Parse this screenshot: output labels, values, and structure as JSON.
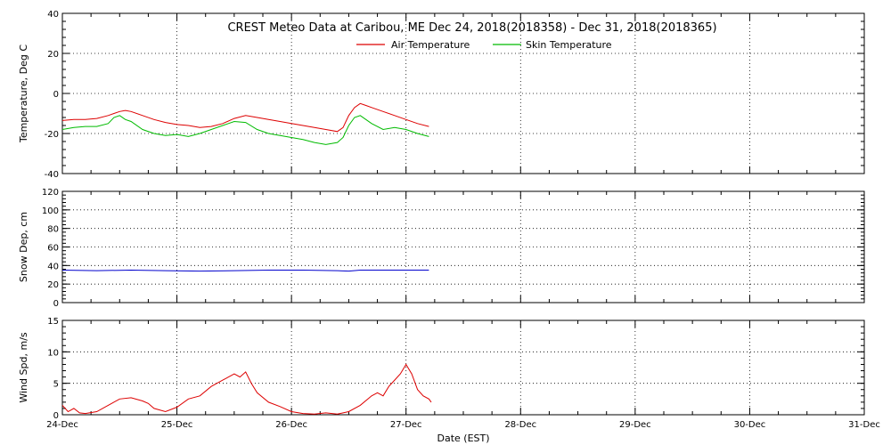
{
  "chart_data": [
    {
      "type": "line",
      "title": "CREST Meteo Data at Caribou, ME   Dec 24, 2018(2018358) - Dec 31, 2018(2018365)",
      "ylabel": "Temperature, Deg C",
      "ylim": [
        -40,
        40
      ],
      "yticks": [
        "-40",
        "-20",
        "0",
        "20",
        "40"
      ],
      "xlim": [
        0,
        7
      ],
      "grid": true,
      "legend": "top-center",
      "series": [
        {
          "name": "Air Temperature",
          "color": "#dd0000",
          "x": [
            0,
            0.1,
            0.2,
            0.3,
            0.4,
            0.45,
            0.5,
            0.55,
            0.6,
            0.7,
            0.8,
            0.9,
            1.0,
            1.1,
            1.2,
            1.3,
            1.4,
            1.5,
            1.6,
            1.7,
            1.8,
            1.9,
            2.0,
            2.1,
            2.2,
            2.3,
            2.4,
            2.45,
            2.5,
            2.55,
            2.6,
            2.65,
            2.7,
            2.8,
            2.9,
            3.0,
            3.1,
            3.2
          ],
          "values": [
            -13.5,
            -13,
            -13,
            -12.5,
            -11,
            -10,
            -9,
            -8.5,
            -9,
            -11,
            -13,
            -14.5,
            -15.5,
            -16,
            -17,
            -16.5,
            -15,
            -12.5,
            -11,
            -12,
            -13,
            -14,
            -15,
            -16,
            -17,
            -18,
            -19,
            -17,
            -11,
            -7,
            -5,
            -6,
            -7,
            -9,
            -11,
            -13,
            -15,
            -16.5
          ]
        },
        {
          "name": "Skin Temperature",
          "color": "#00bb00",
          "x": [
            0,
            0.1,
            0.2,
            0.3,
            0.4,
            0.45,
            0.5,
            0.55,
            0.6,
            0.7,
            0.8,
            0.9,
            1.0,
            1.1,
            1.2,
            1.3,
            1.4,
            1.5,
            1.6,
            1.7,
            1.8,
            1.9,
            2.0,
            2.1,
            2.2,
            2.3,
            2.4,
            2.45,
            2.5,
            2.55,
            2.6,
            2.65,
            2.7,
            2.8,
            2.9,
            3.0,
            3.1,
            3.2
          ],
          "values": [
            -18,
            -17,
            -16.5,
            -16.5,
            -15,
            -12,
            -11,
            -13,
            -14,
            -18,
            -20,
            -21,
            -20.5,
            -21.5,
            -20,
            -18,
            -16,
            -14,
            -14.5,
            -18,
            -20,
            -21,
            -22,
            -23,
            -24.5,
            -25.5,
            -24.5,
            -22,
            -16,
            -12,
            -11,
            -13,
            -15,
            -18,
            -17,
            -18,
            -20,
            -21.5
          ]
        }
      ]
    },
    {
      "type": "line",
      "ylabel": "Snow Dep, cm",
      "ylim": [
        0,
        120
      ],
      "yticks": [
        "0",
        "20",
        "40",
        "60",
        "80",
        "100",
        "120"
      ],
      "xlim": [
        0,
        7
      ],
      "grid": true,
      "series": [
        {
          "color": "#0000cc",
          "x": [
            0,
            0.3,
            0.6,
            0.9,
            1.2,
            1.5,
            1.8,
            2.1,
            2.4,
            2.5,
            2.6,
            2.9,
            3.2
          ],
          "values": [
            35,
            34.5,
            35,
            34.5,
            34,
            34.5,
            35,
            35,
            34.5,
            34,
            35,
            35,
            35
          ]
        }
      ]
    },
    {
      "type": "line",
      "ylabel": "Wind Spd, m/s",
      "ylim": [
        0,
        15
      ],
      "yticks": [
        "0",
        "5",
        "10",
        "15"
      ],
      "xlabel": "Date (EST)",
      "categories": [
        "24-Dec",
        "25-Dec",
        "26-Dec",
        "27-Dec",
        "28-Dec",
        "29-Dec",
        "30-Dec",
        "31-Dec"
      ],
      "xlim": [
        0,
        7
      ],
      "grid": true,
      "series": [
        {
          "color": "#dd0000",
          "x": [
            0,
            0.05,
            0.1,
            0.15,
            0.2,
            0.3,
            0.4,
            0.5,
            0.6,
            0.7,
            0.75,
            0.8,
            0.9,
            1.0,
            1.1,
            1.2,
            1.3,
            1.4,
            1.5,
            1.55,
            1.6,
            1.65,
            1.7,
            1.8,
            1.9,
            2.0,
            2.1,
            2.2,
            2.3,
            2.4,
            2.5,
            2.6,
            2.7,
            2.75,
            2.8,
            2.85,
            2.9,
            2.95,
            3.0,
            3.05,
            3.1,
            3.15,
            3.2,
            3.22
          ],
          "values": [
            1.5,
            0.5,
            1,
            0.3,
            0.2,
            0.5,
            1.5,
            2.5,
            2.7,
            2.2,
            1.8,
            1,
            0.5,
            1.2,
            2.5,
            3,
            4.5,
            5.5,
            6.5,
            6,
            6.8,
            5,
            3.5,
            2,
            1.3,
            0.5,
            0.2,
            0.1,
            0.3,
            0.1,
            0.5,
            1.5,
            3,
            3.5,
            3,
            4.5,
            5.5,
            6.5,
            8,
            6.5,
            4,
            3,
            2.5,
            2
          ]
        }
      ]
    }
  ]
}
